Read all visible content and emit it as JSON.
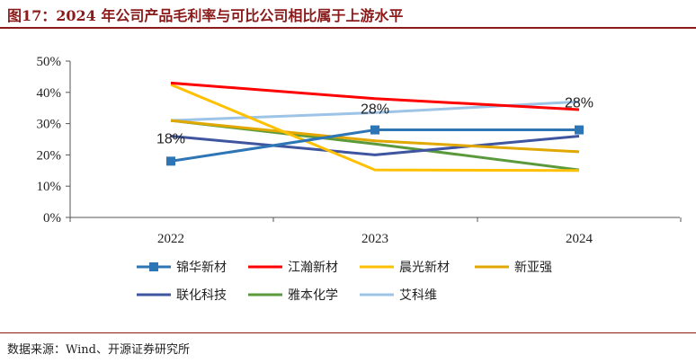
{
  "figure": {
    "title": "图17：2024 年公司产品毛利率与可比公司相比属于上游水平",
    "source": "数据来源：Wind、开源证券研究所"
  },
  "chart_data": {
    "type": "line",
    "x": [
      "2022",
      "2023",
      "2024"
    ],
    "ylim": [
      0,
      50
    ],
    "yticks": [
      "0%",
      "10%",
      "20%",
      "30%",
      "40%",
      "50%"
    ],
    "grid": false,
    "legend_position": "bottom",
    "series": [
      {
        "name": "锦华新材",
        "values": [
          18,
          28,
          28
        ],
        "color": "#2e75b6",
        "marker": "square",
        "data_labels": [
          "18%",
          "28%",
          "28%"
        ]
      },
      {
        "name": "江瀚新材",
        "values": [
          43,
          38,
          34.5
        ],
        "color": "#ff0000"
      },
      {
        "name": "晨光新材",
        "values": [
          42.5,
          15.2,
          15
        ],
        "color": "#ffc000"
      },
      {
        "name": "新亚强",
        "values": [
          31,
          24.5,
          21
        ],
        "color": "#e0a800"
      },
      {
        "name": "联化科技",
        "values": [
          26,
          20,
          26
        ],
        "color": "#3f55a0"
      },
      {
        "name": "雅本化学",
        "values": [
          31,
          23.5,
          15.2
        ],
        "color": "#5b9a3c"
      },
      {
        "name": "艾科维",
        "values": [
          31,
          33.5,
          37
        ],
        "color": "#9dc3e6"
      }
    ]
  }
}
